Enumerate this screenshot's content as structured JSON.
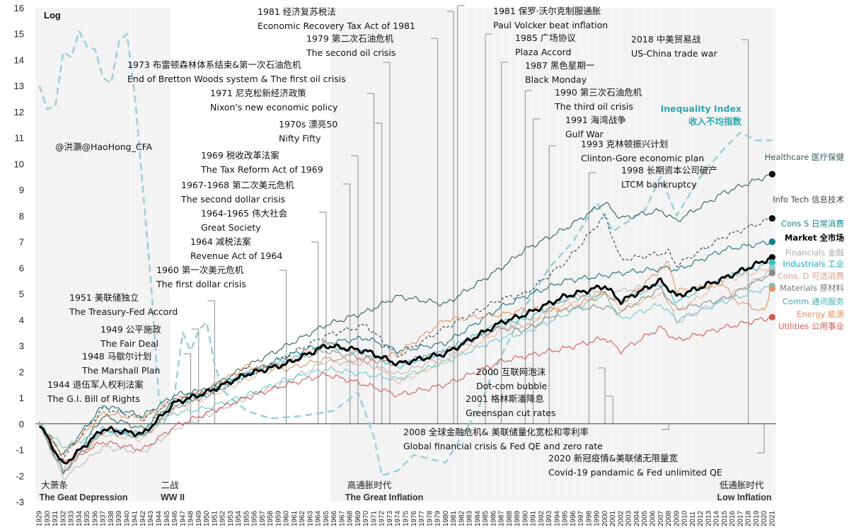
{
  "chart_data": {
    "type": "line",
    "ylabel": "Log",
    "ylim": [
      -3,
      16
    ],
    "yticks": [
      -3,
      -2,
      -1,
      0,
      1,
      2,
      3,
      4,
      5,
      6,
      7,
      8,
      9,
      10,
      11,
      12,
      13,
      14,
      15,
      16
    ],
    "xlim": [
      1929,
      2021
    ],
    "watermark": "@洪灝@HaoHong_CFA",
    "shaded_eras": [
      {
        "start": 1929,
        "end": 1940,
        "label_cn": "大萧条",
        "label_en": "The Geat Depression"
      },
      {
        "start": 1941,
        "end": 1945,
        "label_cn": "二战",
        "label_en": "WW II"
      },
      {
        "start": 1966,
        "end": 1982,
        "label_cn": "高通胀时代",
        "label_en": "The Great Inflation"
      },
      {
        "start": 1983,
        "end": 2021,
        "label_cn": "低通胀时代",
        "label_en": "Low Inflation"
      }
    ],
    "annotations": [
      {
        "year": 1944,
        "cn": "1944 退伍军人权利法案",
        "en": "The G.I. Bill of Rights"
      },
      {
        "year": 1948,
        "cn": "1948 马歇尔计划",
        "en": "The Marshall Plan"
      },
      {
        "year": 1949,
        "cn": "1949 公平施政",
        "en": "The Fair Deal"
      },
      {
        "year": 1951,
        "cn": "1951 美联储独立",
        "en": "The Treasury-Fed Accord"
      },
      {
        "year": 1960,
        "cn": "1960 第一次美元危机",
        "en": "The first dollar crisis"
      },
      {
        "year": 1964,
        "cn": "1964 减税法案",
        "en": "Revenue Act of 1964"
      },
      {
        "year": 1965,
        "cn": "1964-1965 伟大社会",
        "en": "Great Society"
      },
      {
        "year": 1968,
        "cn": "1967-1968 第二次美元危机",
        "en": "The second dollar crisis"
      },
      {
        "year": 1969,
        "cn": "1969 税收改革法案",
        "en": "The Tax Reform Act of 1969"
      },
      {
        "year": 1972,
        "cn": "1970s 漂亮50",
        "en": "Nifty Fifty"
      },
      {
        "year": 1971,
        "cn": "1971 尼克松新经济政策",
        "en": "Nixon's new economic policy"
      },
      {
        "year": 1973,
        "cn": "1973 布雷顿森林体系结束&第一次石油危机",
        "en": "End of Bretton Woods system & The first oil crisis"
      },
      {
        "year": 1979,
        "cn": "1979 第二次石油危机",
        "en": "The second oil crisis"
      },
      {
        "year": 1981,
        "cn": "1981 经济复苏税法",
        "en": "Economic Recovery Tax Act of 1981"
      },
      {
        "year": 1981.5,
        "cn": "1981 保罗·沃尔克制服通胀",
        "en": "Paul Volcker beat inflation"
      },
      {
        "year": 1985,
        "cn": "1985 广场协议",
        "en": "Plaza Accord"
      },
      {
        "year": 1987,
        "cn": "1987 黑色星期一",
        "en": "Black Monday"
      },
      {
        "year": 1990,
        "cn": "1990 第三次石油危机",
        "en": "The third oil crisis"
      },
      {
        "year": 1991,
        "cn": "1991 海湾战争",
        "en": "Gulf War"
      },
      {
        "year": 1993,
        "cn": "1993 克林顿振兴计划",
        "en": "Clinton-Gore economic plan"
      },
      {
        "year": 1998,
        "cn": "1998 长期资本公司破产",
        "en": "LTCM bankruptcy"
      },
      {
        "year": 2000,
        "cn": "2000 互联网泡沫",
        "en": "Dot-com bubble"
      },
      {
        "year": 2001,
        "cn": "2001 格林斯潘降息",
        "en": "Greenspan cut rates"
      },
      {
        "year": 2008,
        "cn": "2008 全球金融危机& 美联储量化宽松和零利率",
        "en": "Global financial crisis & Fed QE and zero rate"
      },
      {
        "year": 2018,
        "cn": "2018 中美贸易战",
        "en": "US-China trade war"
      },
      {
        "year": 2020,
        "cn": "2020 新冠疫情&美联储无限量宽",
        "en": "Covid-19 pandamic & Fed unlimited QE"
      }
    ],
    "inequality_label_en": "Inequality Index",
    "inequality_label_cn": "收入不均指数",
    "series": [
      {
        "name": "Inequality Index 收入不均指数",
        "color": "#9ccfd6",
        "style": "dashed",
        "x": [
          1929,
          1930,
          1931,
          1932,
          1933,
          1934,
          1935,
          1936,
          1937,
          1938,
          1939,
          1940,
          1941,
          1942,
          1943,
          1944,
          1945,
          1946,
          1947,
          1948,
          1949,
          1950,
          1951,
          1952,
          1953,
          1955,
          1958,
          1962,
          1966,
          1969,
          1971,
          1972,
          1974,
          1976,
          1980,
          1982,
          1984,
          1986,
          1990,
          1993,
          1996,
          1999,
          2001,
          2003,
          2005,
          2007,
          2009,
          2010,
          2012,
          2015,
          2017,
          2019,
          2021
        ],
        "values": [
          13,
          12.1,
          12.2,
          14.3,
          14.1,
          15.1,
          14.5,
          14.4,
          13.3,
          13.1,
          14.7,
          15.0,
          12.6,
          9.0,
          5.5,
          1.0,
          0.3,
          1.2,
          3.5,
          2.8,
          3.6,
          3.9,
          2.3,
          1.3,
          1.0,
          0.5,
          0.2,
          0.3,
          0.5,
          1.2,
          -0.5,
          -2.0,
          -1.8,
          -1.2,
          -1.5,
          -0.5,
          0.5,
          2.0,
          4.5,
          6.0,
          7.0,
          8.5,
          7.4,
          7.8,
          8.2,
          9.5,
          8.0,
          8.5,
          9.5,
          10.6,
          11.2,
          10.9,
          10.9
        ]
      },
      {
        "name": "Healthcare 医疗保健",
        "color": "#2e5f5a",
        "dot": "#111111",
        "x": [
          1929,
          1932,
          1937,
          1942,
          1946,
          1950,
          1955,
          1960,
          1965,
          1970,
          1974,
          1980,
          1987,
          1990,
          1995,
          2000,
          2002,
          2007,
          2009,
          2015,
          2021
        ],
        "values": [
          0,
          -1.9,
          0.3,
          -0.2,
          0.9,
          1.3,
          2.2,
          3.0,
          3.8,
          4.3,
          4.9,
          4.6,
          6.0,
          6.7,
          7.5,
          8.5,
          7.9,
          8.2,
          7.8,
          8.9,
          9.6
        ]
      },
      {
        "name": "Info Tech 信息技术",
        "color": "#2c3e50",
        "dot": "#111111",
        "style": "dashed",
        "x": [
          1929,
          1932,
          1937,
          1942,
          1946,
          1950,
          1955,
          1960,
          1965,
          1970,
          1974,
          1980,
          1987,
          1990,
          1995,
          2000,
          2002,
          2008,
          2009,
          2015,
          2021
        ],
        "values": [
          0,
          -1.3,
          0.6,
          0.2,
          0.9,
          1.1,
          1.8,
          2.6,
          3.4,
          3.8,
          2.6,
          3.7,
          4.8,
          5.0,
          6.2,
          8.0,
          6.3,
          6.6,
          6.1,
          7.2,
          7.9
        ]
      },
      {
        "name": "Cons S 日常消费",
        "color": "#1b6f7a",
        "dot": "#12808a",
        "x": [
          1929,
          1932,
          1937,
          1942,
          1946,
          1950,
          1955,
          1960,
          1965,
          1970,
          1974,
          1980,
          1987,
          1990,
          1995,
          2000,
          2002,
          2008,
          2009,
          2015,
          2021
        ],
        "values": [
          0,
          -1.2,
          0.7,
          0.3,
          1.1,
          1.3,
          1.9,
          2.6,
          3.1,
          3.3,
          2.8,
          3.1,
          4.5,
          4.9,
          5.5,
          5.7,
          5.8,
          6.0,
          5.9,
          6.7,
          7.0
        ]
      },
      {
        "name": "Market 全市场",
        "color": "#000000",
        "dot": "#000000",
        "width": 3,
        "x": [
          1929,
          1932,
          1937,
          1942,
          1946,
          1950,
          1955,
          1960,
          1965,
          1970,
          1974,
          1980,
          1987,
          1990,
          1995,
          2000,
          2002,
          2007,
          2009,
          2015,
          2021
        ],
        "values": [
          0,
          -1.6,
          -0.2,
          -0.4,
          0.8,
          1.2,
          1.9,
          2.3,
          3.0,
          2.8,
          2.3,
          2.7,
          3.9,
          4.2,
          4.9,
          5.3,
          4.7,
          5.5,
          4.9,
          5.6,
          6.4
        ]
      },
      {
        "name": "Financials 金融",
        "color": "#b8b8b8",
        "dot": "#c8c8c8",
        "x": [
          1929,
          1932,
          1937,
          1942,
          1946,
          1950,
          1955,
          1960,
          1965,
          1970,
          1974,
          1980,
          1987,
          1990,
          1995,
          2000,
          2002,
          2007,
          2009,
          2015,
          2021
        ],
        "values": [
          0,
          -2.1,
          -0.9,
          -1.1,
          -0.2,
          0.3,
          1.0,
          1.6,
          2.4,
          2.3,
          1.9,
          2.6,
          3.8,
          3.7,
          4.8,
          5.2,
          5.1,
          5.4,
          3.9,
          4.8,
          5.9
        ]
      },
      {
        "name": "Industrials 工业",
        "color": "#3cbcc8",
        "dot": "#3cbcc8",
        "x": [
          1929,
          1932,
          1937,
          1942,
          1946,
          1950,
          1955,
          1960,
          1965,
          1970,
          1974,
          1980,
          1987,
          1990,
          1995,
          2000,
          2002,
          2007,
          2009,
          2015,
          2021
        ],
        "values": [
          0,
          -1.7,
          -0.2,
          -0.4,
          0.7,
          1.1,
          1.9,
          2.4,
          3.0,
          2.7,
          2.2,
          2.8,
          3.9,
          4.0,
          4.8,
          5.0,
          4.7,
          5.4,
          4.7,
          5.6,
          6.2
        ]
      },
      {
        "name": "Cons. D 可选消费",
        "color": "#e7b79a",
        "dot": "#8fd0c9",
        "x": [
          1929,
          1932,
          1937,
          1942,
          1946,
          1950,
          1955,
          1960,
          1965,
          1970,
          1974,
          1980,
          1987,
          1990,
          1995,
          2000,
          2002,
          2007,
          2009,
          2015,
          2021
        ],
        "values": [
          0,
          -1.8,
          -0.4,
          -0.6,
          0.6,
          1.0,
          1.7,
          2.3,
          3.1,
          2.6,
          1.6,
          2.4,
          3.6,
          3.8,
          4.6,
          5.1,
          4.4,
          5.0,
          4.3,
          5.5,
          6.0
        ]
      },
      {
        "name": "Materials 原材料",
        "color": "#8a8a8a",
        "dot": "#888888",
        "x": [
          1929,
          1932,
          1937,
          1942,
          1946,
          1950,
          1955,
          1960,
          1965,
          1970,
          1974,
          1980,
          1987,
          1990,
          1995,
          2000,
          2002,
          2007,
          2009,
          2015,
          2021
        ],
        "values": [
          0,
          -1.9,
          -0.3,
          -0.5,
          0.6,
          1.1,
          2.0,
          2.4,
          2.8,
          2.5,
          2.3,
          2.8,
          3.7,
          3.6,
          4.4,
          4.5,
          4.3,
          5.2,
          4.4,
          4.8,
          5.8
        ]
      },
      {
        "name": "Comm 通讯服务",
        "color": "#6fc5c8",
        "dot": "#6fc5c8",
        "x": [
          1929,
          1932,
          1937,
          1942,
          1946,
          1950,
          1955,
          1960,
          1965,
          1970,
          1974,
          1980,
          1987,
          1990,
          1995,
          2000,
          2002,
          2007,
          2009,
          2015,
          2021
        ],
        "values": [
          0,
          -0.9,
          -0.3,
          -0.4,
          0.4,
          0.6,
          1.1,
          1.7,
          2.1,
          1.9,
          1.7,
          2.4,
          3.3,
          3.5,
          4.2,
          5.0,
          4.0,
          4.6,
          4.0,
          4.7,
          5.3
        ]
      },
      {
        "name": "Energy 能源",
        "color": "#e2935e",
        "dot": "#e2935e",
        "x": [
          1929,
          1932,
          1937,
          1942,
          1946,
          1950,
          1955,
          1960,
          1965,
          1970,
          1974,
          1980,
          1987,
          1990,
          1995,
          2000,
          2002,
          2008,
          2009,
          2015,
          2016,
          2020,
          2021
        ],
        "values": [
          0,
          -1.2,
          0.4,
          0.2,
          0.9,
          1.3,
          2.2,
          2.1,
          2.5,
          2.4,
          2.7,
          4.0,
          4.2,
          4.4,
          4.4,
          5.0,
          4.6,
          6.2,
          5.1,
          5.4,
          4.8,
          4.3,
          5.2
        ]
      },
      {
        "name": "Utilities 公用事业",
        "color": "#d35a55",
        "dot": "#d35a55",
        "x": [
          1929,
          1932,
          1937,
          1942,
          1946,
          1950,
          1955,
          1960,
          1965,
          1970,
          1974,
          1980,
          1987,
          1990,
          1995,
          2000,
          2002,
          2007,
          2009,
          2015,
          2021
        ],
        "values": [
          0,
          -1.5,
          -0.7,
          -1.0,
          -0.1,
          0.4,
          1.0,
          1.5,
          1.9,
          1.5,
          1.1,
          1.5,
          2.4,
          2.6,
          2.9,
          3.3,
          2.8,
          3.7,
          3.2,
          3.7,
          4.1
        ]
      }
    ]
  }
}
